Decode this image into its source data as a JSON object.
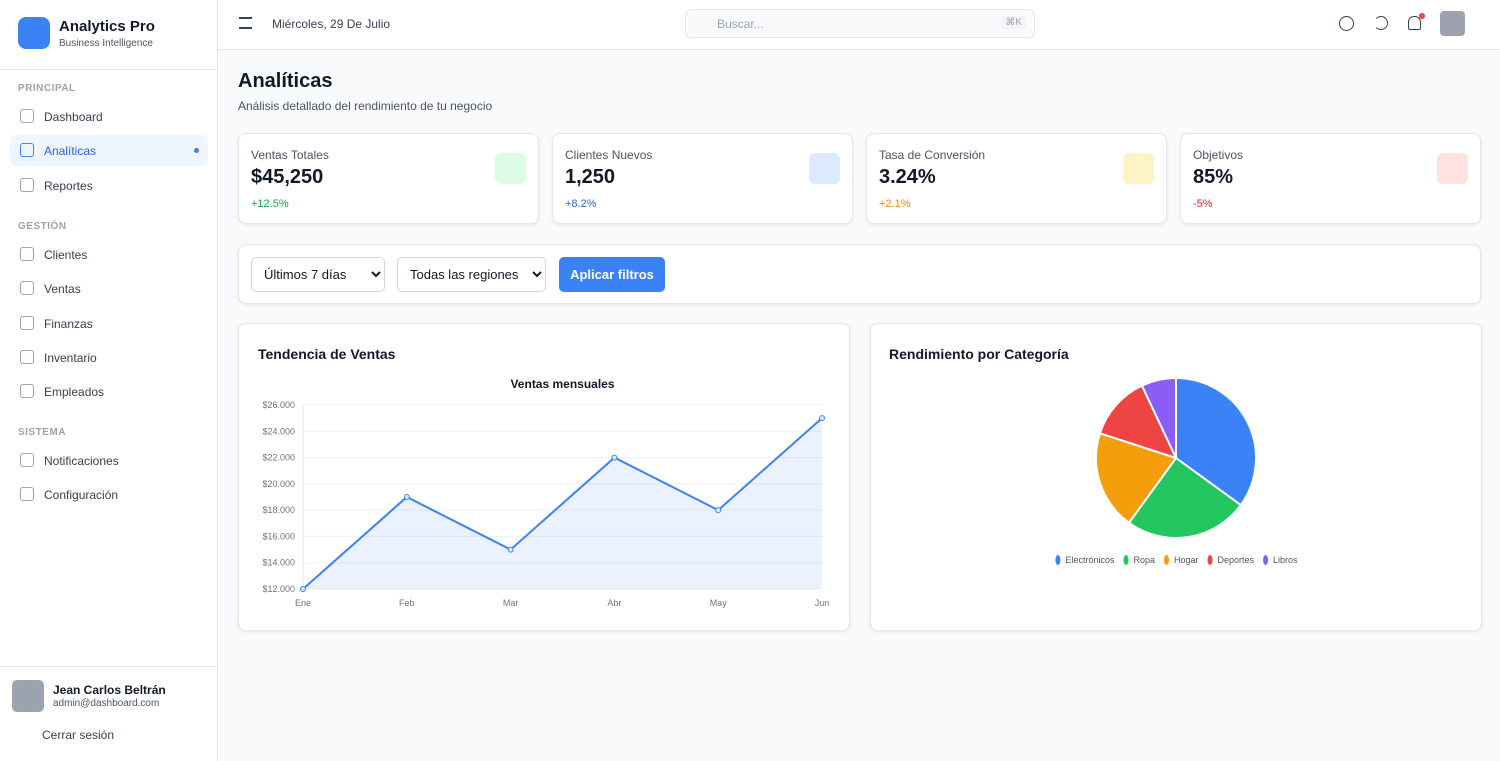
{
  "sidebar": {
    "brand": {
      "title": "Analytics Pro",
      "subtitle": "Business Intelligence"
    },
    "sections": [
      {
        "title": "PRINCIPAL",
        "items": [
          "Dashboard",
          "Analíticas",
          "Reportes"
        ]
      },
      {
        "title": "GESTIÓN",
        "items": [
          "Clientes",
          "Ventas",
          "Finanzas",
          "Inventario",
          "Empleados"
        ]
      },
      {
        "title": "SISTEMA",
        "items": [
          "Notificaciones",
          "Configuración"
        ]
      }
    ],
    "user": {
      "name": "Jean Carlos Beltrán",
      "email": "admin@dashboard.com"
    },
    "logout": "Cerrar sesión"
  },
  "header": {
    "date": "Miércoles, 29 De Julio",
    "search": "Buscar...",
    "shortcut": "⌘K"
  },
  "page": {
    "title": "Analíticas",
    "subtitle": "Análisis detallado del rendimiento de tu negocio"
  },
  "stats": [
    {
      "label": "Ventas Totales",
      "value": "$45,250",
      "change": "+12.5%"
    },
    {
      "label": "Clientes Nuevos",
      "value": "1,250",
      "change": "+8.2%"
    },
    {
      "label": "Tasa de Conversión",
      "value": "3.24%",
      "change": "+2.1%"
    },
    {
      "label": "Objetivos",
      "value": "85%",
      "change": "-5%"
    }
  ],
  "filters": {
    "period": "Últimos 7 días",
    "region": "Todas las regiones",
    "apply": "Aplicar filtros"
  },
  "cards": [
    "Tendencia de Ventas",
    "Rendimiento por Categoría"
  ],
  "chart_data": [
    {
      "type": "line",
      "title": "Ventas mensuales",
      "categories": [
        "Ene",
        "Feb",
        "Mar",
        "Abr",
        "May",
        "Jun"
      ],
      "values": [
        12000,
        19000,
        15000,
        22000,
        18000,
        25000
      ],
      "color": "#3b82f6",
      "ylim": [
        12000,
        26000
      ],
      "yticks": [
        {
          "value": 12000,
          "label": "$12.000"
        },
        {
          "value": 14000,
          "label": "$14.000"
        },
        {
          "value": 16000,
          "label": "$16.000"
        },
        {
          "value": 18000,
          "label": "$18.000"
        },
        {
          "value": 20000,
          "label": "$20.000"
        },
        {
          "value": 22000,
          "label": "$22.000"
        },
        {
          "value": 24000,
          "label": "$24.000"
        },
        {
          "value": 26000,
          "label": "$26.000"
        }
      ],
      "grid": true
    },
    {
      "type": "pie",
      "categories": [
        "Electrónicos",
        "Ropa",
        "Hogar",
        "Deportes",
        "Libros"
      ],
      "values": [
        35,
        25,
        20,
        13,
        7
      ],
      "colors": [
        "#3b82f6",
        "#22c55e",
        "#f59e0b",
        "#ef4444",
        "#8b5cf6"
      ]
    }
  ]
}
